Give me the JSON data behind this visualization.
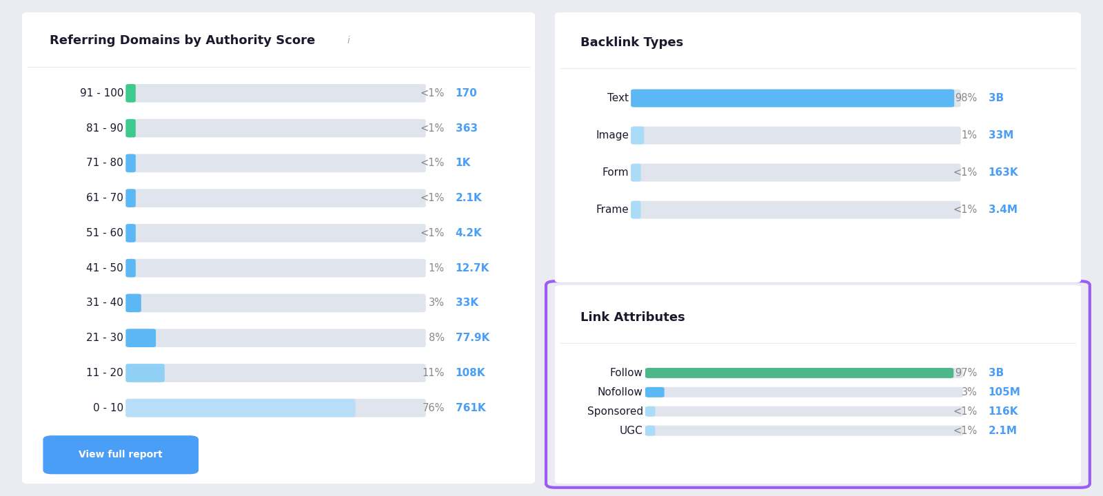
{
  "bg_color": "#eaecf2",
  "panel_color": "#ffffff",
  "panel1_title": "Referring Domains by Authority Score",
  "panel1_rows": [
    {
      "label": "91 - 100",
      "pct_text": "<1%",
      "value_text": "170",
      "fill": 0.002,
      "bar_color": "#3ec98e"
    },
    {
      "label": "81 - 90",
      "pct_text": "<1%",
      "value_text": "363",
      "fill": 0.003,
      "bar_color": "#3ec98e"
    },
    {
      "label": "71 - 80",
      "pct_text": "<1%",
      "value_text": "1K",
      "fill": 0.004,
      "bar_color": "#5bb8f5"
    },
    {
      "label": "61 - 70",
      "pct_text": "<1%",
      "value_text": "2.1K",
      "fill": 0.005,
      "bar_color": "#5bb8f5"
    },
    {
      "label": "51 - 60",
      "pct_text": "<1%",
      "value_text": "4.2K",
      "fill": 0.006,
      "bar_color": "#5bb8f5"
    },
    {
      "label": "41 - 50",
      "pct_text": "1%",
      "value_text": "12.7K",
      "fill": 0.01,
      "bar_color": "#5bb8f5"
    },
    {
      "label": "31 - 40",
      "pct_text": "3%",
      "value_text": "33K",
      "fill": 0.03,
      "bar_color": "#5bb8f5"
    },
    {
      "label": "21 - 30",
      "pct_text": "8%",
      "value_text": "77.9K",
      "fill": 0.08,
      "bar_color": "#5bb8f5"
    },
    {
      "label": "11 - 20",
      "pct_text": "11%",
      "value_text": "108K",
      "fill": 0.11,
      "bar_color": "#90d0f5"
    },
    {
      "label": "0 - 10",
      "pct_text": "76%",
      "value_text": "761K",
      "fill": 0.76,
      "bar_color": "#b8def7"
    }
  ],
  "button_text": "View full report",
  "button_color": "#4a9ef5",
  "button_text_color": "#ffffff",
  "panel2_title": "Backlink Types",
  "panel2_rows": [
    {
      "label": "Text",
      "pct_text": "98%",
      "value_text": "3B",
      "fill": 0.98,
      "bar_color": "#5bb8f5"
    },
    {
      "label": "Image",
      "pct_text": "1%",
      "value_text": "33M",
      "fill": 0.02,
      "bar_color": "#aadcf8"
    },
    {
      "label": "Form",
      "pct_text": "<1%",
      "value_text": "163K",
      "fill": 0.01,
      "bar_color": "#aadcf8"
    },
    {
      "label": "Frame",
      "pct_text": "<1%",
      "value_text": "3.4M",
      "fill": 0.01,
      "bar_color": "#aadcf8"
    }
  ],
  "panel3_title": "Link Attributes",
  "panel3_border_color": "#9b5cf6",
  "panel3_rows": [
    {
      "label": "Follow",
      "pct_text": "97%",
      "value_text": "3B",
      "fill": 0.97,
      "bar_color": "#4cb88a"
    },
    {
      "label": "Nofollow",
      "pct_text": "3%",
      "value_text": "105M",
      "fill": 0.04,
      "bar_color": "#5bb8f5"
    },
    {
      "label": "Sponsored",
      "pct_text": "<1%",
      "value_text": "116K",
      "fill": 0.01,
      "bar_color": "#aadcf8"
    },
    {
      "label": "UGC",
      "pct_text": "<1%",
      "value_text": "2.1M",
      "fill": 0.01,
      "bar_color": "#aadcf8"
    }
  ],
  "value_color": "#4a9ef5",
  "label_color": "#1a1a2e",
  "pct_color": "#888888",
  "title_color": "#1a1a2e",
  "info_color": "#aaaaaa",
  "bar_bg_color": "#e0e4ed",
  "divider_color": "#e8eaf0"
}
